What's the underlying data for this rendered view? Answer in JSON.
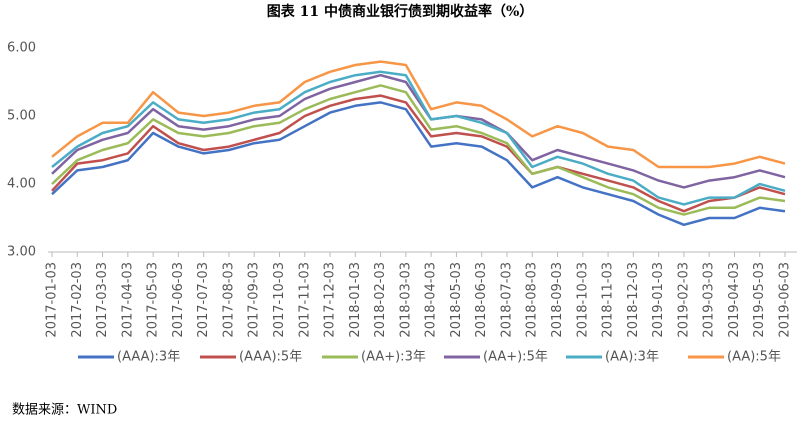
{
  "chart_data": {
    "type": "line",
    "title": "图表 11 中债商业银行债到期收益率（%）",
    "source": "数据来源：WIND",
    "categories": [
      "2017-01-03",
      "2017-02-03",
      "2017-03-03",
      "2017-04-03",
      "2017-05-03",
      "2017-06-03",
      "2017-07-03",
      "2017-08-03",
      "2017-09-03",
      "2017-10-03",
      "2017-11-03",
      "2017-12-03",
      "2018-01-03",
      "2018-02-03",
      "2018-03-03",
      "2018-04-03",
      "2018-05-03",
      "2018-06-03",
      "2018-07-03",
      "2018-08-03",
      "2018-09-03",
      "2018-10-03",
      "2018-11-03",
      "2018-12-03",
      "2019-01-03",
      "2019-02-03",
      "2019-03-03",
      "2019-04-03",
      "2019-05-03",
      "2019-06-03"
    ],
    "series": [
      {
        "name": "(AAA):3年",
        "color": "#4472c4",
        "values": [
          3.85,
          4.2,
          4.25,
          4.35,
          4.75,
          4.55,
          4.45,
          4.5,
          4.6,
          4.65,
          4.85,
          5.05,
          5.15,
          5.2,
          5.1,
          4.55,
          4.6,
          4.55,
          4.35,
          3.95,
          4.1,
          3.95,
          3.85,
          3.75,
          3.55,
          3.4,
          3.5,
          3.5,
          3.65,
          3.6
        ]
      },
      {
        "name": "(AAA):5年",
        "color": "#c0504d",
        "values": [
          3.9,
          4.3,
          4.35,
          4.45,
          4.85,
          4.6,
          4.5,
          4.55,
          4.65,
          4.75,
          5.0,
          5.15,
          5.25,
          5.3,
          5.2,
          4.7,
          4.75,
          4.7,
          4.55,
          4.15,
          4.25,
          4.15,
          4.05,
          3.95,
          3.75,
          3.6,
          3.75,
          3.8,
          3.95,
          3.85
        ]
      },
      {
        "name": "(AA+):3年",
        "color": "#9bbb59",
        "values": [
          4.0,
          4.35,
          4.5,
          4.6,
          4.95,
          4.75,
          4.7,
          4.75,
          4.85,
          4.9,
          5.1,
          5.25,
          5.35,
          5.45,
          5.35,
          4.8,
          4.85,
          4.75,
          4.6,
          4.15,
          4.25,
          4.1,
          3.95,
          3.85,
          3.65,
          3.55,
          3.65,
          3.65,
          3.8,
          3.75
        ]
      },
      {
        "name": "(AA+):5年",
        "color": "#8064a2",
        "values": [
          4.15,
          4.5,
          4.65,
          4.75,
          5.1,
          4.85,
          4.8,
          4.85,
          4.95,
          5.0,
          5.25,
          5.4,
          5.5,
          5.6,
          5.5,
          4.95,
          5.0,
          4.95,
          4.75,
          4.35,
          4.5,
          4.4,
          4.3,
          4.2,
          4.05,
          3.95,
          4.05,
          4.1,
          4.2,
          4.1
        ]
      },
      {
        "name": "(AA):3年",
        "color": "#4bacc6",
        "values": [
          4.25,
          4.55,
          4.75,
          4.85,
          5.2,
          4.95,
          4.9,
          4.95,
          5.05,
          5.1,
          5.35,
          5.5,
          5.6,
          5.65,
          5.6,
          4.95,
          5.0,
          4.9,
          4.75,
          4.25,
          4.4,
          4.3,
          4.15,
          4.05,
          3.8,
          3.7,
          3.8,
          3.8,
          4.0,
          3.9
        ]
      },
      {
        "name": "(AA):5年",
        "color": "#f79646",
        "values": [
          4.4,
          4.7,
          4.9,
          4.9,
          5.35,
          5.05,
          5.0,
          5.05,
          5.15,
          5.2,
          5.5,
          5.65,
          5.75,
          5.8,
          5.75,
          5.1,
          5.2,
          5.15,
          4.95,
          4.7,
          4.85,
          4.75,
          4.55,
          4.5,
          4.25,
          4.25,
          4.25,
          4.3,
          4.4,
          4.3
        ]
      }
    ],
    "ylim": [
      3,
      6
    ],
    "yticks": [
      {
        "value": 3,
        "label": "3.00"
      },
      {
        "value": 4,
        "label": "4.00"
      },
      {
        "value": 5,
        "label": "5.00"
      },
      {
        "value": 6,
        "label": "6.00"
      }
    ],
    "grid": false
  }
}
